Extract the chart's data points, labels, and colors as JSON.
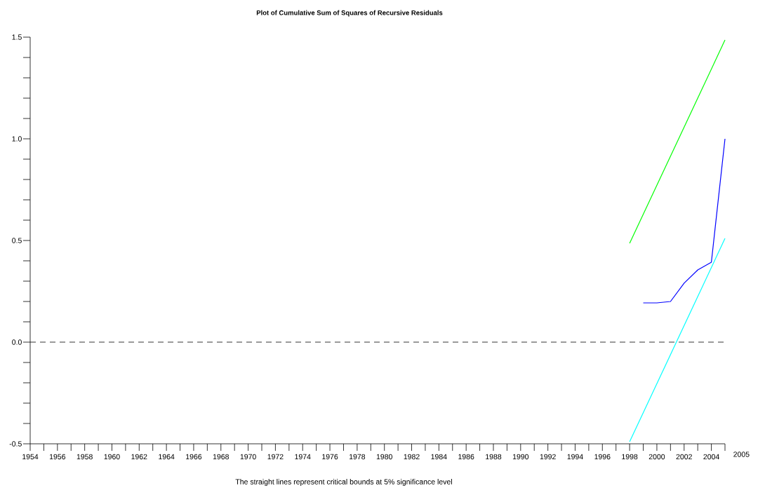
{
  "chart_data": {
    "type": "line",
    "title": "Plot of Cumulative Sum of Squares of Recursive Residuals",
    "xlabel": "2005",
    "annotations": [
      "The straight lines represent critical bounds at 5% significance level"
    ],
    "xlim": [
      1954,
      2005
    ],
    "ylim": [
      -0.5,
      1.5
    ],
    "xticks": [
      1954,
      {
        "value": 1955,
        "label": null
      },
      1956,
      {
        "value": 1957,
        "label": null
      },
      1958,
      {
        "value": 1959,
        "label": null
      },
      1960,
      {
        "value": 1961,
        "label": null
      },
      1962,
      {
        "value": 1963,
        "label": null
      },
      1964,
      {
        "value": 1965,
        "label": null
      },
      1966,
      {
        "value": 1967,
        "label": null
      },
      1968,
      {
        "value": 1969,
        "label": null
      },
      1970,
      {
        "value": 1971,
        "label": null
      },
      1972,
      {
        "value": 1973,
        "label": null
      },
      1974,
      {
        "value": 1975,
        "label": null
      },
      1976,
      {
        "value": 1977,
        "label": null
      },
      1978,
      {
        "value": 1979,
        "label": null
      },
      1980,
      {
        "value": 1981,
        "label": null
      },
      1982,
      {
        "value": 1983,
        "label": null
      },
      1984,
      {
        "value": 1985,
        "label": null
      },
      1986,
      {
        "value": 1987,
        "label": null
      },
      1988,
      {
        "value": 1989,
        "label": null
      },
      1990,
      {
        "value": 1991,
        "label": null
      },
      1992,
      {
        "value": 1993,
        "label": null
      },
      1994,
      {
        "value": 1995,
        "label": null
      },
      1996,
      {
        "value": 1997,
        "label": null
      },
      1998,
      {
        "value": 1999,
        "label": null
      },
      2000,
      {
        "value": 2001,
        "label": null
      },
      2002,
      {
        "value": 2003,
        "label": null
      },
      2004,
      {
        "value": 2005,
        "label": null
      }
    ],
    "yticks": [
      -0.5,
      {
        "value": -0.4,
        "label": null
      },
      {
        "value": -0.3,
        "label": null
      },
      {
        "value": -0.2,
        "label": null
      },
      {
        "value": -0.1,
        "label": null
      },
      {
        "value": 0,
        "label": "0.0"
      },
      {
        "value": 0.1,
        "label": null
      },
      {
        "value": 0.2,
        "label": null
      },
      {
        "value": 0.3,
        "label": null
      },
      {
        "value": 0.4,
        "label": null
      },
      0.5,
      {
        "value": 0.6,
        "label": null
      },
      {
        "value": 0.7,
        "label": null
      },
      {
        "value": 0.8,
        "label": null
      },
      {
        "value": 0.9,
        "label": null
      },
      {
        "value": 1,
        "label": "1.0"
      },
      {
        "value": 1.1,
        "label": null
      },
      {
        "value": 1.2,
        "label": null
      },
      {
        "value": 1.3,
        "label": null
      },
      {
        "value": 1.4,
        "label": null
      },
      1.5
    ],
    "marker": "none",
    "line_style": "solid",
    "ref_lines": [
      {
        "axis": "y",
        "value": 0,
        "color": "#000000",
        "line_style": "dashed"
      }
    ],
    "series": [
      {
        "color": "#0000ff",
        "x": [
          1999,
          2000,
          2001,
          2002,
          2003,
          2004,
          2005
        ],
        "values": [
          0.193,
          0.193,
          0.2,
          0.29,
          0.355,
          0.393,
          1.0
        ]
      },
      {
        "color": "#00ff00",
        "x": [
          1998,
          2005
        ],
        "values": [
          0.486,
          1.486
        ]
      },
      {
        "color": "#00ffff",
        "x": [
          1998,
          2005
        ],
        "values": [
          -0.49,
          0.51
        ]
      }
    ]
  }
}
